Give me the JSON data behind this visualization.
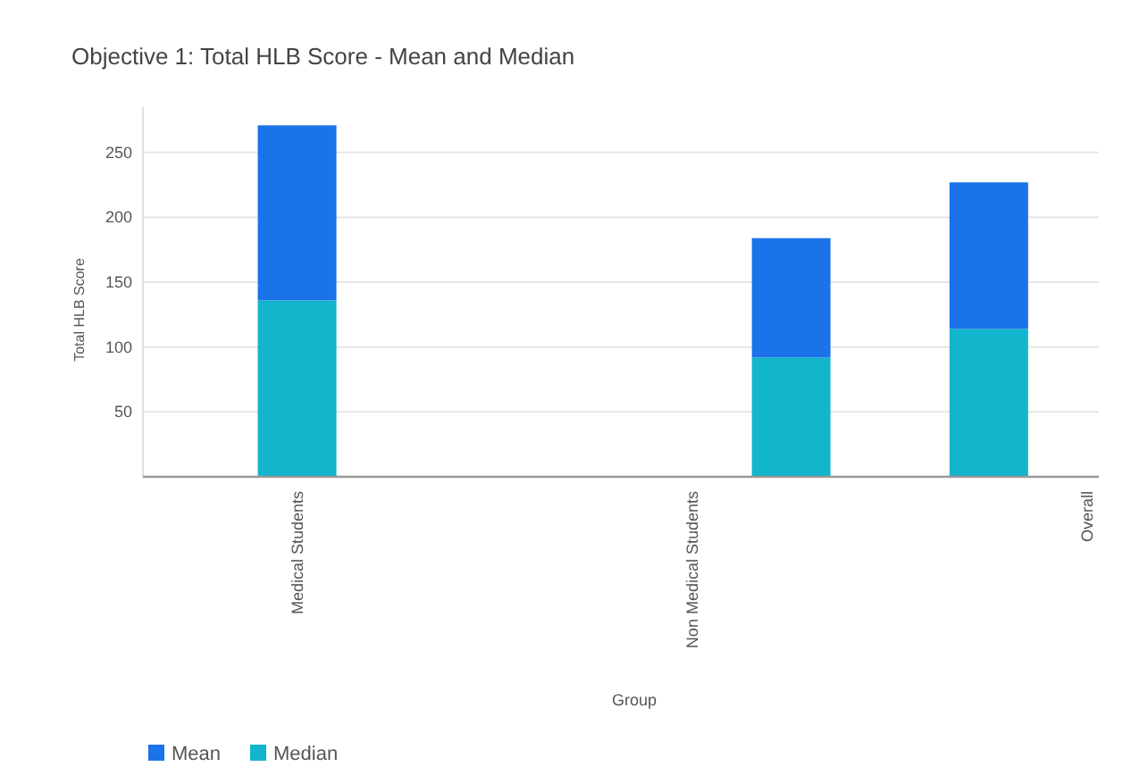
{
  "chart_data": {
    "type": "bar",
    "title": "Objective 1: Total HLB Score - Mean and Median",
    "xlabel": "Group",
    "ylabel": "Total HLB Score",
    "categories": [
      "Medical Students",
      null,
      null,
      null,
      "Non Medical Students",
      null,
      null,
      null,
      "Overall"
    ],
    "series": [
      {
        "name": "Median",
        "color": "#12b5cb",
        "values": [
          136,
          null,
          null,
          null,
          null,
          92,
          null,
          114,
          null
        ]
      },
      {
        "name": "Mean",
        "color": "#1a73e8",
        "values": [
          135,
          null,
          null,
          null,
          null,
          92,
          null,
          113,
          null
        ]
      }
    ],
    "stacked": true,
    "ylim": [
      0,
      285
    ],
    "yticks": [
      50,
      100,
      150,
      200,
      250
    ],
    "grid": "y",
    "legend": "bottom left"
  }
}
